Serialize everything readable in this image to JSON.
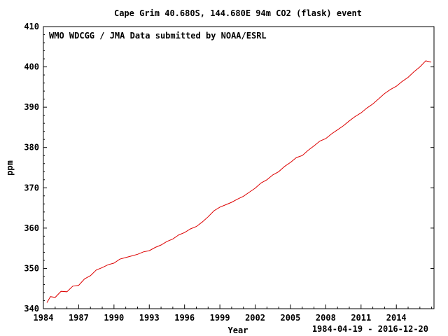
{
  "chart_data": {
    "type": "line",
    "title": "Cape Grim 40.680S, 144.680E 94m    CO2 (flask)  event",
    "annotation": "WMO WDCGG / JMA   Data submitted by NOAA/ESRL",
    "xlabel": "Year",
    "ylabel": "ppm",
    "date_range": "1984-04-19 - 2016-12-20",
    "xlim": [
      1984.0,
      2017.2
    ],
    "ylim": [
      340,
      410
    ],
    "x_ticks": [
      1984,
      1987,
      1990,
      1993,
      1996,
      1999,
      2002,
      2005,
      2008,
      2011,
      2014
    ],
    "x_tick_labels": [
      "1984",
      "1987",
      "1990",
      "1993",
      "1996",
      "1999",
      "2002",
      "2005",
      "2008",
      "2011",
      "2014"
    ],
    "y_ticks": [
      340,
      350,
      360,
      370,
      380,
      390,
      400,
      410
    ],
    "y_tick_labels": [
      "340",
      "350",
      "360",
      "370",
      "380",
      "390",
      "400",
      "410"
    ],
    "grid": false,
    "line_color": "#dd0000",
    "series": [
      {
        "x": [
          1984.3,
          1984.6,
          1985.0,
          1985.5,
          1986.0,
          1986.5,
          1987.0,
          1987.5,
          1988.0,
          1988.5,
          1989.0,
          1989.5,
          1990.0,
          1990.5,
          1991.0,
          1991.5,
          1992.0,
          1992.5,
          1993.0,
          1993.5,
          1994.0,
          1994.5,
          1995.0,
          1995.5,
          1996.0,
          1996.5,
          1997.0,
          1997.5,
          1998.0,
          1998.5,
          1999.0,
          1999.5,
          2000.0,
          2000.5,
          2001.0,
          2001.5,
          2002.0,
          2002.5,
          2003.0,
          2003.5,
          2004.0,
          2004.5,
          2005.0,
          2005.5,
          2006.0,
          2006.5,
          2007.0,
          2007.5,
          2008.0,
          2008.5,
          2009.0,
          2009.5,
          2010.0,
          2010.5,
          2011.0,
          2011.5,
          2012.0,
          2012.5,
          2013.0,
          2013.5,
          2014.0,
          2014.5,
          2015.0,
          2015.5,
          2016.0,
          2016.5,
          2016.97
        ],
        "values": [
          341.5,
          343.0,
          342.8,
          344.3,
          344.2,
          345.6,
          345.8,
          347.4,
          348.2,
          349.6,
          350.2,
          350.9,
          351.3,
          352.3,
          352.7,
          353.1,
          353.5,
          354.1,
          354.4,
          355.2,
          355.8,
          356.7,
          357.3,
          358.3,
          358.9,
          359.8,
          360.4,
          361.5,
          362.8,
          364.3,
          365.2,
          365.8,
          366.4,
          367.2,
          367.9,
          368.9,
          369.9,
          371.2,
          372.0,
          373.2,
          374.0,
          375.3,
          376.3,
          377.5,
          378.0,
          379.3,
          380.4,
          381.6,
          382.2,
          383.4,
          384.4,
          385.4,
          386.6,
          387.7,
          388.6,
          389.8,
          390.8,
          392.1,
          393.4,
          394.4,
          395.2,
          396.4,
          397.4,
          398.8,
          400.0,
          401.5,
          401.2
        ]
      }
    ]
  }
}
